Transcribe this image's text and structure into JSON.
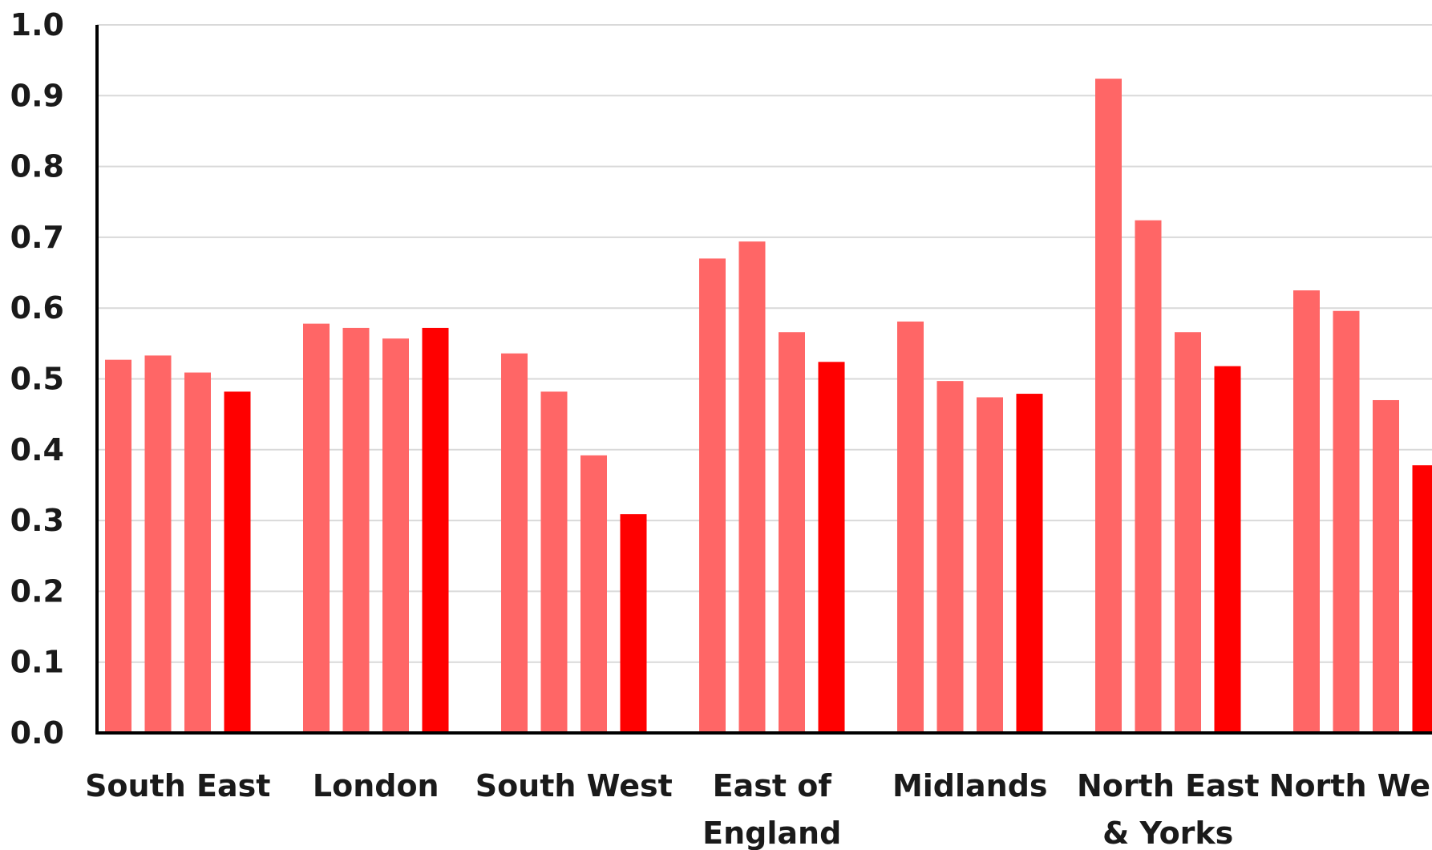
{
  "chart_data": {
    "type": "bar",
    "title": "",
    "xlabel": "",
    "ylabel": "",
    "ylim": [
      0,
      1.0
    ],
    "yticks": [
      "0.0",
      "0.1",
      "0.2",
      "0.3",
      "0.4",
      "0.5",
      "0.6",
      "0.7",
      "0.8",
      "0.9",
      "1.0"
    ],
    "grid": true,
    "legend": "none",
    "categories": [
      [
        "South East"
      ],
      [
        "London"
      ],
      [
        "South West"
      ],
      [
        "East of",
        "England"
      ],
      [
        "Midlands"
      ],
      [
        "North East",
        "& Yorks"
      ],
      [
        "North West"
      ]
    ],
    "series": [
      {
        "values": [
          0.527,
          0.578,
          0.536,
          0.67,
          0.581,
          0.924,
          0.625
        ],
        "color": "#ff6666"
      },
      {
        "values": [
          0.533,
          0.572,
          0.482,
          0.694,
          0.497,
          0.724,
          0.596
        ],
        "color": "#ff6666"
      },
      {
        "values": [
          0.509,
          0.557,
          0.392,
          0.566,
          0.474,
          0.566,
          0.47
        ],
        "color": "#ff6666"
      },
      {
        "values": [
          0.482,
          0.572,
          0.309,
          0.524,
          0.479,
          0.518,
          0.378
        ],
        "color": "#ff0000"
      }
    ]
  }
}
